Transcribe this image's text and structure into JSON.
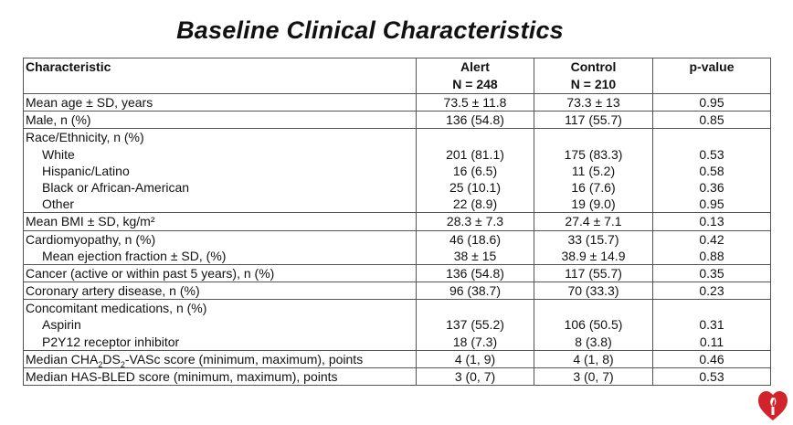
{
  "title": "Baseline Clinical Characteristics",
  "table": {
    "headers": {
      "characteristic": "Characteristic",
      "alert": "Alert",
      "alert_n": "N = 248",
      "control": "Control",
      "control_n": "N = 210",
      "pvalue": "p-value"
    },
    "rows": [
      {
        "label": "Mean age ± SD, years",
        "alert": "73.5 ± 11.8",
        "control": "73.3 ± 13",
        "p": "0.95"
      },
      {
        "label": "Male, n (%)",
        "alert": "136 (54.8)",
        "control": "117 (55.7)",
        "p": "0.85"
      },
      {
        "label": "Race/Ethnicity, n (%)",
        "subs": [
          {
            "label": "White",
            "alert": "201 (81.1)",
            "control": "175 (83.3)",
            "p": "0.53"
          },
          {
            "label": "Hispanic/Latino",
            "alert": "16 (6.5)",
            "control": "11 (5.2)",
            "p": "0.58"
          },
          {
            "label": "Black or African-American",
            "alert": "25 (10.1)",
            "control": "16 (7.6)",
            "p": "0.36"
          },
          {
            "label": "Other",
            "alert": "22 (8.9)",
            "control": "19 (9.0)",
            "p": "0.95"
          }
        ]
      },
      {
        "label": "Mean BMI ± SD, kg/m²",
        "alert": "28.3 ± 7.3",
        "control": "27.4 ± 7.1",
        "p": "0.13"
      },
      {
        "label": "Cardiomyopathy, n (%)",
        "alert": "46 (18.6)",
        "control": "33 (15.7)",
        "p": "0.42",
        "subs": [
          {
            "label": "Mean ejection fraction ± SD, (%)",
            "alert": "38 ± 15",
            "control": "38.9 ± 14.9",
            "p": "0.88"
          }
        ]
      },
      {
        "label": "Cancer (active or within past 5 years), n (%)",
        "alert": "136 (54.8)",
        "control": "117 (55.7)",
        "p": "0.35"
      },
      {
        "label": "Coronary artery disease, n (%)",
        "alert": "96 (38.7)",
        "control": "70 (33.3)",
        "p": "0.23"
      },
      {
        "label": "Concomitant medications, n (%)",
        "subs": [
          {
            "label": "Aspirin",
            "alert": "137 (55.2)",
            "control": "106 (50.5)",
            "p": "0.31"
          },
          {
            "label": "P2Y12 receptor inhibitor",
            "alert": "18 (7.3)",
            "control": "8 (3.8)",
            "p": "0.11"
          }
        ]
      },
      {
        "label_parts": [
          "Median CHA",
          "2",
          "DS",
          "2",
          "-VASc score (minimum, maximum), points"
        ],
        "alert": "4 (1, 9)",
        "control": "4 (1, 8)",
        "p": "0.46"
      },
      {
        "label": "Median HAS-BLED score (minimum, maximum), points",
        "alert": "3 (0, 7)",
        "control": "3 (0, 7)",
        "p": "0.53"
      }
    ]
  },
  "logo_icon": "heart-torch-icon",
  "logo_color": "#d2232a"
}
